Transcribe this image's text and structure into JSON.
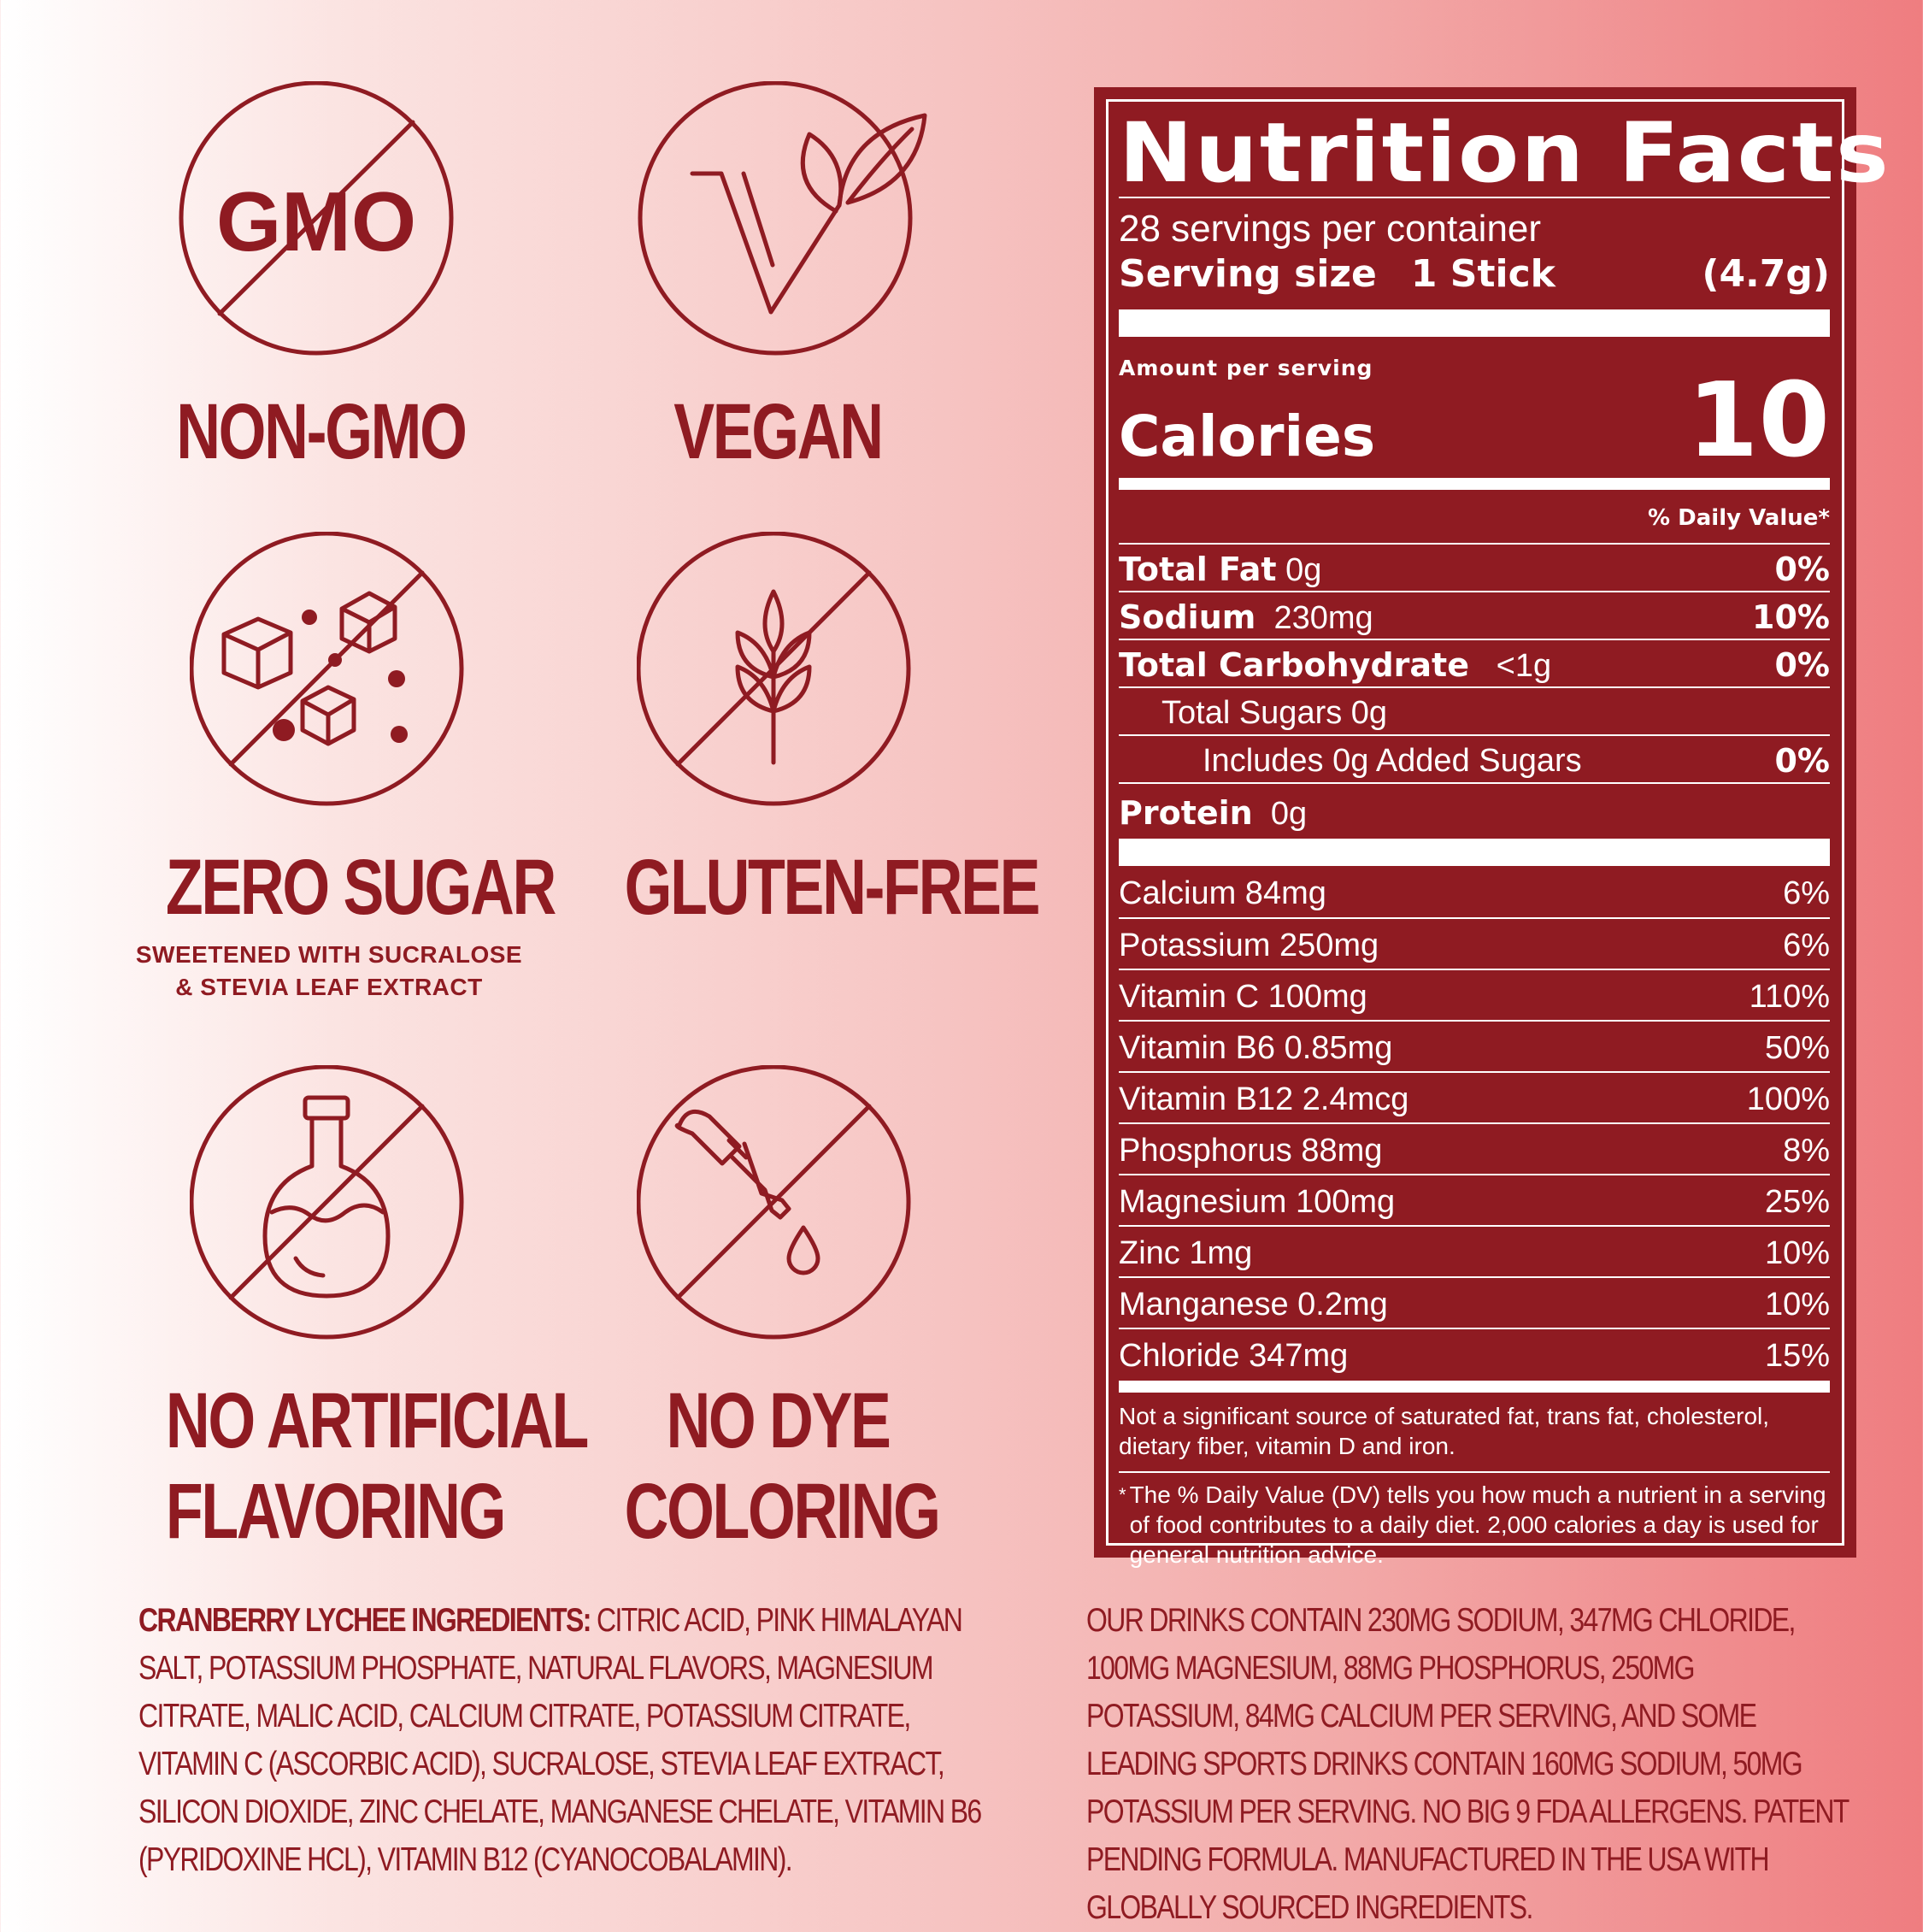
{
  "badges": {
    "non_gmo": {
      "icon_text": "GMO",
      "label": "NON-GMO"
    },
    "vegan": {
      "label": "VEGAN"
    },
    "zero_sugar": {
      "label": "ZERO SUGAR",
      "sub_line1": "SWEETENED WITH SUCRALOSE",
      "sub_line2": "&  STEVIA LEAF EXTRACT"
    },
    "gluten_free": {
      "label": "GLUTEN-FREE"
    },
    "no_artificial": {
      "line1": "NO ARTIFICIAL",
      "line2": "FLAVORING"
    },
    "no_dye": {
      "line1": "NO DYE",
      "line2": "COLORING"
    }
  },
  "nutrition": {
    "title": "Nutrition Facts",
    "servings": "28 servings per container",
    "serving_size_label": "Serving size",
    "serving_size_value": "1 Stick",
    "serving_size_weight": "(4.7g)",
    "amount_per": "Amount per serving",
    "calories_label": "Calories",
    "calories_value": "10",
    "dv_header": "% Daily Value*",
    "rows": [
      {
        "name": "Total Fat",
        "amount": "0g",
        "dv": "0%"
      },
      {
        "name": "Sodium",
        "amount": "230mg",
        "dv": "10%"
      },
      {
        "name": "Total Carbohydrate",
        "amount": "<1g",
        "dv": "0%"
      },
      {
        "name": "Total Sugars 0g",
        "amount": "",
        "dv": ""
      },
      {
        "name": "Includes 0g Added Sugars",
        "amount": "",
        "dv": "0%"
      },
      {
        "name": "Protein",
        "amount": "0g",
        "dv": ""
      }
    ],
    "vitamins": [
      {
        "name": "Calcium 84mg",
        "dv": "6%"
      },
      {
        "name": "Potassium 250mg",
        "dv": "6%"
      },
      {
        "name": "Vitamin C 100mg",
        "dv": "110%"
      },
      {
        "name": "Vitamin B6 0.85mg",
        "dv": "50%"
      },
      {
        "name": "Vitamin B12 2.4mcg",
        "dv": "100%"
      },
      {
        "name": "Phosphorus 88mg",
        "dv": "8%"
      },
      {
        "name": "Magnesium 100mg",
        "dv": "25%"
      },
      {
        "name": "Zinc 1mg",
        "dv": "10%"
      },
      {
        "name": "Manganese 0.2mg",
        "dv": "10%"
      },
      {
        "name": "Chloride 347mg",
        "dv": "15%"
      }
    ],
    "footnote1": "Not a significant source of saturated fat, trans fat, cholesterol, dietary fiber, vitamin D and iron.",
    "footnote2_star": "*",
    "footnote2": "The % Daily Value (DV) tells you how much a nutrient in a serving of food contributes to a daily diet. 2,000 calories a day is used for general nutrition advice."
  },
  "ingredients": {
    "lead": "CRANBERRY LYCHEE INGREDIENTS:",
    "text": " CITRIC ACID, PINK HIMALAYAN SALT, POTASSIUM PHOSPHATE, NATURAL FLAVORS, MAGNESIUM CITRATE, MALIC ACID, CALCIUM CITRATE, POTASSIUM CITRATE, VITAMIN C (ASCORBIC ACID), SUCRALOSE, STEVIA LEAF EXTRACT, SILICON DIOXIDE, ZINC CHELATE, MANGANESE CHELATE, VITAMIN B6 (PYRIDOXINE HCL), VITAMIN B12 (CYANOCOBALAMIN)."
  },
  "note": "OUR DRINKS CONTAIN 230MG SODIUM, 347MG CHLORIDE,  100MG MAGNESIUM, 88MG PHOSPHORUS, 250MG POTASSIUM, 84MG CALCIUM PER SERVING, AND SOME LEADING SPORTS DRINKS CONTAIN 160MG SODIUM, 50MG POTASSIUM PER SERVING. NO BIG 9 FDA ALLERGENS. PATENT PENDING FORMULA. MANUFACTURED IN THE USA WITH GLOBALLY SOURCED INGREDIENTS.",
  "colors": {
    "brand_red": "#8f1b22",
    "white": "#ffffff"
  }
}
